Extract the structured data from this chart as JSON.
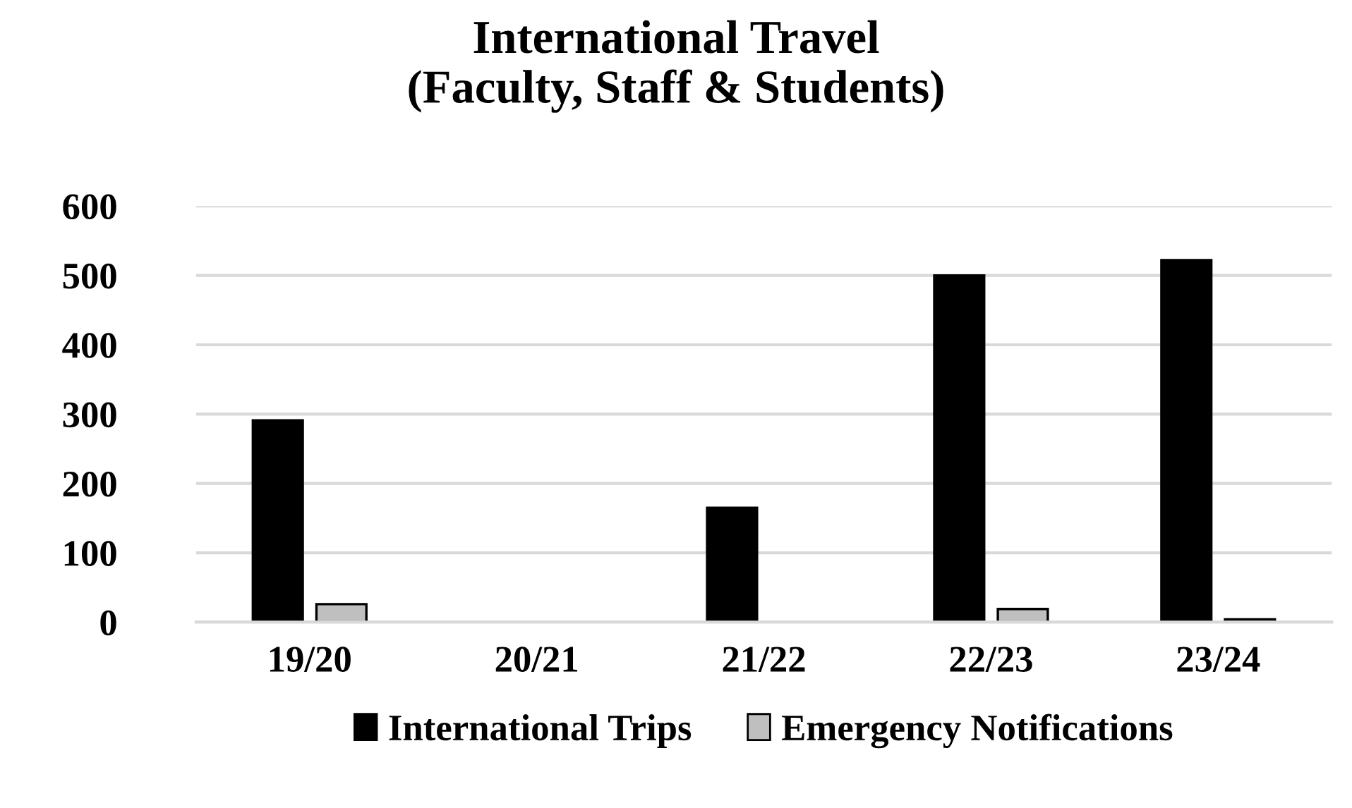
{
  "chart_data": {
    "type": "bar",
    "title": "International Travel\n(Faculty, Staff & Students)",
    "categories": [
      "19/20",
      "20/21",
      "21/22",
      "22/23",
      "23/24"
    ],
    "series": [
      {
        "name": "International Trips",
        "color": "#000000",
        "values": [
          291,
          null,
          165,
          500,
          522
        ]
      },
      {
        "name": "Emergency Notifications",
        "color": "#bfbfbf",
        "values": [
          26,
          null,
          null,
          19,
          4
        ]
      }
    ],
    "ylim": [
      0,
      600
    ],
    "yticks": [
      0,
      100,
      200,
      300,
      400,
      500,
      600
    ],
    "grid": "y",
    "legend": "bottom"
  }
}
